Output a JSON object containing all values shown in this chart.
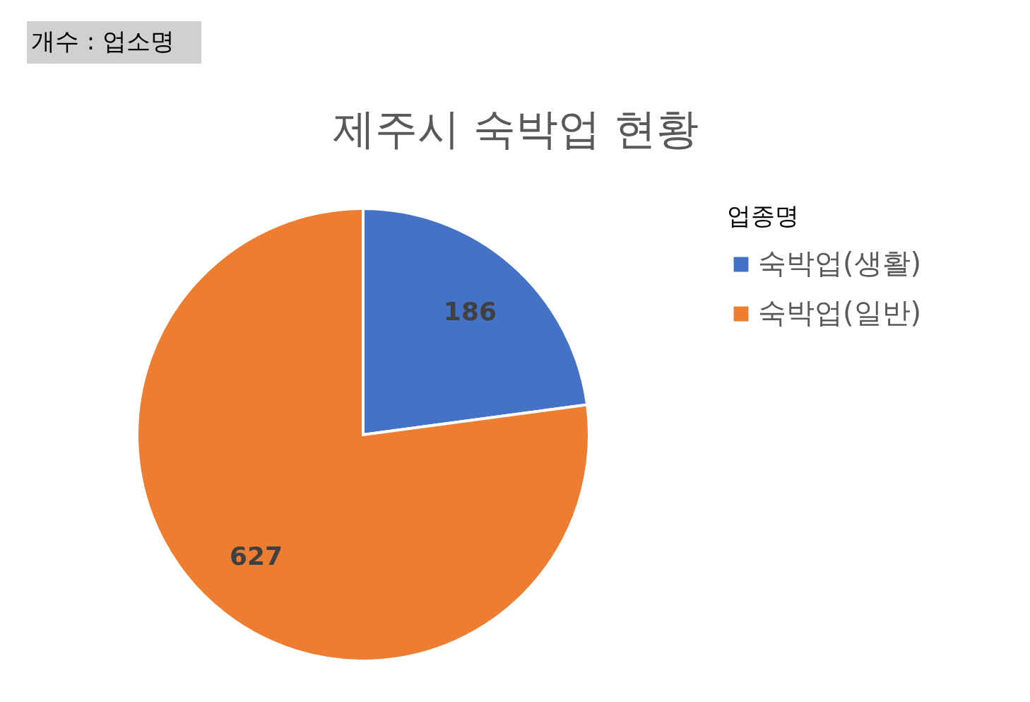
{
  "chart_data": {
    "type": "pie",
    "title": "제주시 숙박업 현황",
    "categories": [
      "숙박업(생활)",
      "숙박업(일반)"
    ],
    "values": [
      186,
      627
    ],
    "colors": [
      "#4472c4",
      "#ed7d31"
    ],
    "data_labels": true,
    "legend": "right",
    "legend_title": "업종명",
    "annotations": [
      "개수 : 업소명"
    ]
  }
}
